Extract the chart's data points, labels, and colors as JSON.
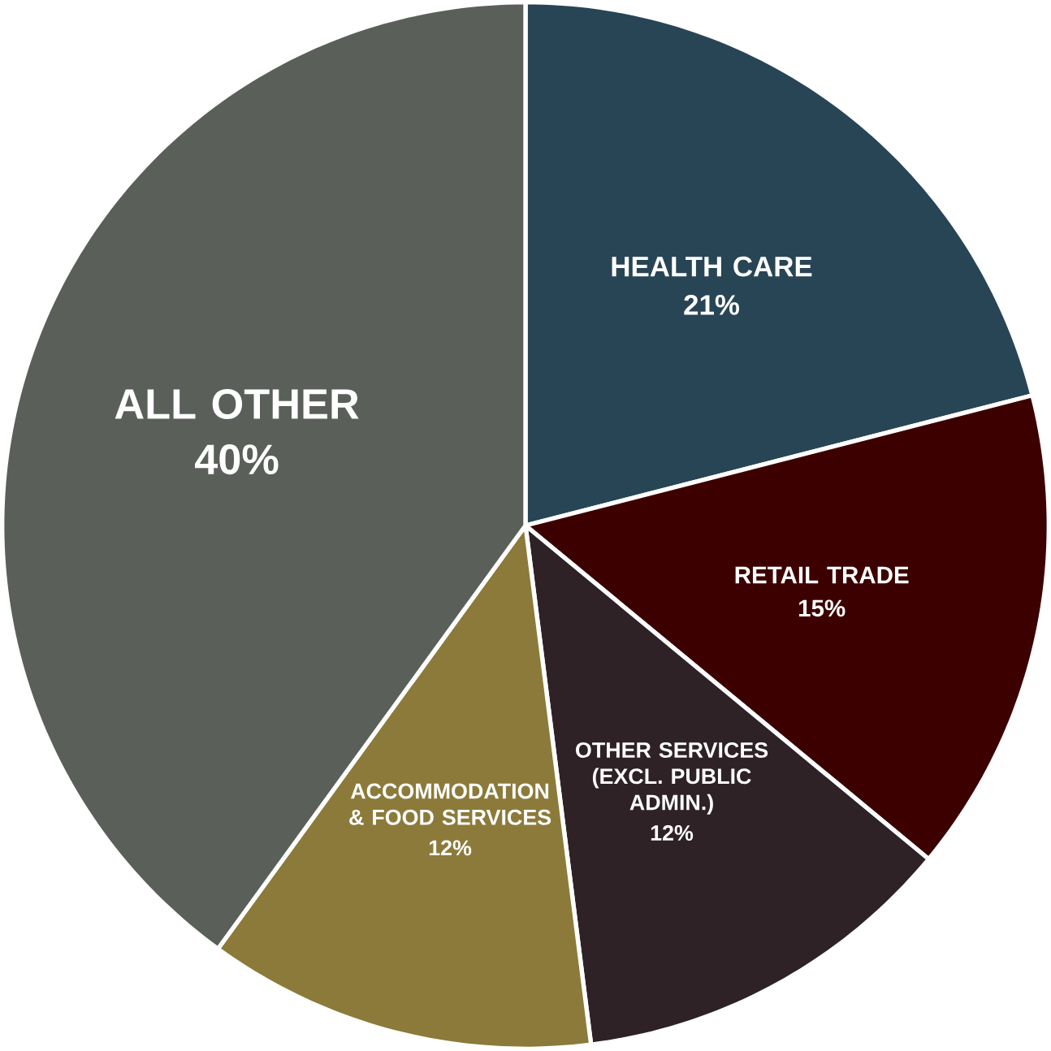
{
  "chart_data": {
    "type": "pie",
    "categories": [
      "HEALTH CARE",
      "RETAIL TRADE",
      "OTHER SERVICES (EXCL. PUBLIC ADMIN.)",
      "ACCOMMODATION & FOOD SERVICES",
      "ALL OTHER"
    ],
    "values": [
      21,
      15,
      12,
      12,
      40
    ],
    "value_labels": [
      "21%",
      "15%",
      "12%",
      "12%",
      "40%"
    ],
    "colors": [
      "#284556",
      "#3d0000",
      "#2e2226",
      "#8c7a3a",
      "#5a5f5a"
    ]
  }
}
